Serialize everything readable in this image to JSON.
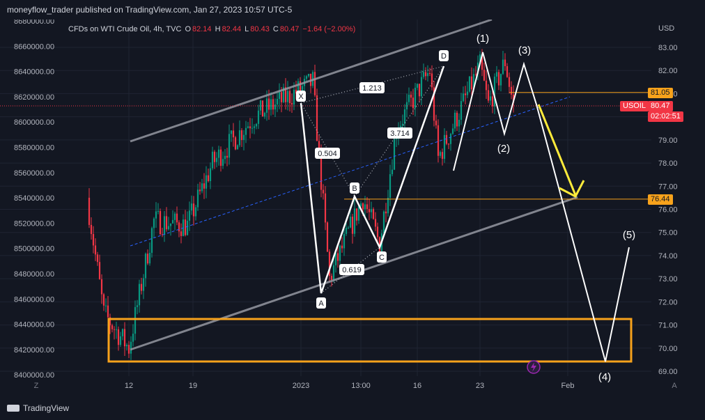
{
  "header": {
    "publisher": "moneyflow_trader published on TradingView.com, Jan 27, 2023 10:57 UTC-5"
  },
  "legend": {
    "symbol": "CFDs on WTI Crude Oil, 4h, TVC",
    "o_label": "O",
    "o_value": "82.14",
    "h_label": "H",
    "h_value": "82.44",
    "l_label": "L",
    "l_value": "80.43",
    "c_label": "C",
    "c_value": "80.47",
    "change": "−1.64 (−2.00%)"
  },
  "footer": {
    "brand": "TradingView"
  },
  "colors": {
    "background": "#131722",
    "up": "#089981",
    "down": "#f23645",
    "accent": "#f7a21b",
    "target": "#ffeb3b"
  },
  "chart_data": {
    "type": "candlestick",
    "symbol": "USOIL",
    "currency": "USD",
    "right_axis": {
      "label": "USD",
      "ticks": [
        "83.00",
        "82.00",
        "81.00",
        "80.00",
        "79.00",
        "78.00",
        "77.00",
        "76.00",
        "75.00",
        "74.00",
        "73.00",
        "72.00",
        "71.00",
        "70.00",
        "69.00"
      ],
      "ylim": [
        68.9,
        83.5
      ]
    },
    "left_axis": {
      "ticks": [
        "8680000.00",
        "8660000.00",
        "8640000.00",
        "8620000.00",
        "8600000.00",
        "8580000.00",
        "8560000.00",
        "8540000.00",
        "8520000.00",
        "8500000.00",
        "8480000.00",
        "8460000.00",
        "8440000.00",
        "8420000.00",
        "8400000.00"
      ]
    },
    "x_axis": {
      "ticks": [
        "12",
        "19",
        "2023",
        "13:00",
        "16",
        "23",
        "Feb"
      ],
      "corner_left": "Z",
      "corner_right": "A"
    },
    "price_labels": {
      "last_symbol": "USOIL",
      "last_price": "80.47",
      "countdown": "02:02:51",
      "level_upper": "81.05",
      "level_lower": "76.44"
    },
    "price_anchors": [
      {
        "date": "2022-12-07",
        "close": 76.5
      },
      {
        "date": "2022-12-09",
        "close": 71.5
      },
      {
        "date": "2022-12-12",
        "close": 70.0
      },
      {
        "date": "2022-12-15",
        "close": 75.5
      },
      {
        "date": "2022-12-19",
        "close": 75.3
      },
      {
        "date": "2022-12-22",
        "close": 78.0
      },
      {
        "date": "2022-12-27",
        "close": 80.0
      },
      {
        "date": "2023-01-03",
        "close": 81.5
      },
      {
        "date": "2023-01-05",
        "close": 73.0
      },
      {
        "date": "2023-01-09",
        "close": 76.5
      },
      {
        "date": "2023-01-11",
        "close": 74.5
      },
      {
        "date": "2023-01-13",
        "close": 79.5
      },
      {
        "date": "2023-01-17",
        "close": 82.0
      },
      {
        "date": "2023-01-18",
        "close": 78.2
      },
      {
        "date": "2023-01-23",
        "close": 82.2
      },
      {
        "date": "2023-01-24",
        "close": 80.5
      },
      {
        "date": "2023-01-26",
        "close": 82.4
      },
      {
        "date": "2023-01-27",
        "close": 80.47
      }
    ],
    "harmonic_pattern": {
      "points": [
        "X",
        "A",
        "B",
        "C",
        "D"
      ],
      "ratios": [
        "0.504",
        "0.619",
        "3.714",
        "1.213"
      ]
    },
    "wave_labels": [
      "(1)",
      "(2)",
      "(3)",
      "(4)",
      "(5)"
    ],
    "horizontal_levels": [
      81.05,
      76.44
    ]
  }
}
